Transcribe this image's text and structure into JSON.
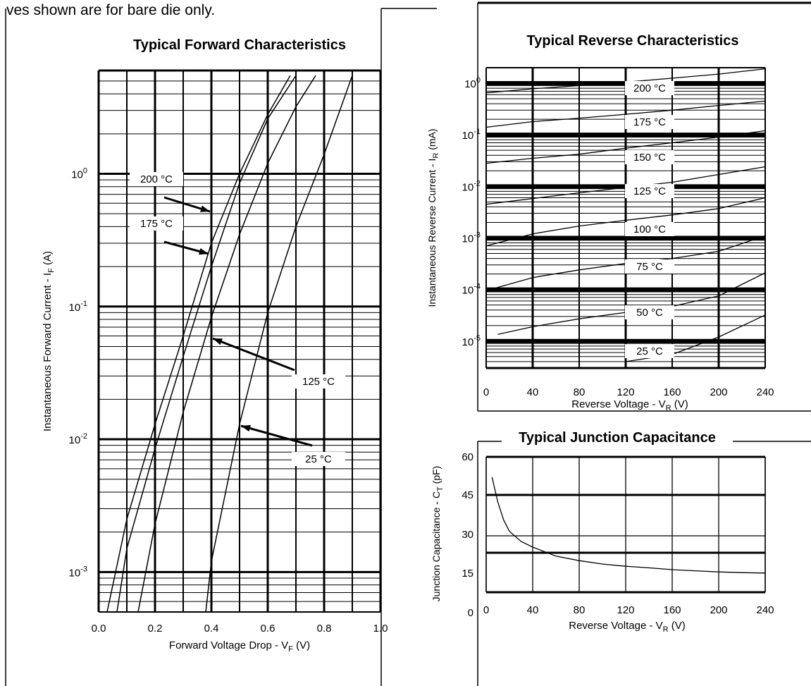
{
  "caption": "ves shown are for bare die only.",
  "chart_data": [
    {
      "type": "line",
      "title": "Typical Forward Characteristics",
      "xlabel": "Forward Voltage Drop - V",
      "xlabel_sub": "F",
      "xlabel_unit": " (V)",
      "ylabel": "Instantaneous Forward Current - I",
      "ylabel_sub": "F",
      "ylabel_unit": " (A)",
      "xlim": [
        0.0,
        1.0
      ],
      "ylim": [
        0.0005,
        6
      ],
      "yscale": "log",
      "grid": true,
      "xticks": [
        "0.0",
        "0.2",
        "0.4",
        "0.6",
        "0.8",
        "1.0"
      ],
      "yticks": [
        {
          "base": "10",
          "exp": "0",
          "value": 1
        },
        {
          "base": "10",
          "exp": "-1",
          "value": 0.1
        },
        {
          "base": "10",
          "exp": "-2",
          "value": 0.01
        },
        {
          "base": "10",
          "exp": "-3",
          "value": 0.001
        }
      ],
      "series": [
        {
          "name": "200 °C",
          "x": [
            0.03,
            0.1,
            0.2,
            0.3,
            0.4,
            0.5,
            0.6,
            0.68
          ],
          "y": [
            0.0005,
            0.0025,
            0.013,
            0.06,
            0.3,
            1.0,
            2.8,
            5.5
          ]
        },
        {
          "name": "175 °C",
          "x": [
            0.065,
            0.1,
            0.2,
            0.3,
            0.4,
            0.5,
            0.6,
            0.7
          ],
          "y": [
            0.0005,
            0.0015,
            0.0085,
            0.042,
            0.2,
            0.85,
            2.6,
            5.5
          ]
        },
        {
          "name": "125 °C",
          "x": [
            0.14,
            0.2,
            0.3,
            0.4,
            0.5,
            0.6,
            0.7,
            0.77
          ],
          "y": [
            0.0005,
            0.0023,
            0.016,
            0.083,
            0.35,
            1.2,
            3.2,
            5.5
          ]
        },
        {
          "name": "25 °C",
          "x": [
            0.38,
            0.4,
            0.5,
            0.6,
            0.7,
            0.8,
            0.9
          ],
          "y": [
            0.0005,
            0.0012,
            0.013,
            0.09,
            0.4,
            1.4,
            5.5
          ]
        }
      ],
      "annotations": [
        "200 °C",
        "175 °C",
        "125 °C",
        "25 °C"
      ]
    },
    {
      "type": "line",
      "title": "Typical Reverse Characteristics",
      "xlabel": "Reverse Voltage - V",
      "xlabel_sub": "R",
      "xlabel_unit": " (V)",
      "ylabel": "Instantaneous Reverse Current - I",
      "ylabel_sub": "R",
      "ylabel_unit": " (mA)",
      "xlim": [
        0,
        240
      ],
      "ylim": [
        3e-06,
        2
      ],
      "yscale": "log",
      "grid": true,
      "xticks": [
        "0",
        "40",
        "80",
        "120",
        "160",
        "200",
        "240"
      ],
      "yticks": [
        {
          "base": "10",
          "exp": "0",
          "value": 1
        },
        {
          "base": "10",
          "exp": "-1",
          "value": 0.1
        },
        {
          "base": "10",
          "exp": "-2",
          "value": 0.01
        },
        {
          "base": "10",
          "exp": "-3",
          "value": 0.001
        },
        {
          "base": "10",
          "exp": "-4",
          "value": 0.0001
        },
        {
          "base": "10",
          "exp": "-5",
          "value": 1e-05
        }
      ],
      "series": [
        {
          "name": "200 °C",
          "x": [
            0,
            40,
            80,
            120,
            160,
            200,
            240
          ],
          "y": [
            0.65,
            0.78,
            0.9,
            1.05,
            1.25,
            1.5,
            1.9
          ]
        },
        {
          "name": "175 °C",
          "x": [
            0,
            40,
            80,
            120,
            160,
            200,
            240
          ],
          "y": [
            0.14,
            0.18,
            0.21,
            0.25,
            0.3,
            0.37,
            0.45
          ]
        },
        {
          "name": "150 °C",
          "x": [
            0,
            40,
            80,
            120,
            160,
            200,
            240
          ],
          "y": [
            0.028,
            0.035,
            0.042,
            0.055,
            0.07,
            0.09,
            0.12
          ]
        },
        {
          "name": "125 °C",
          "x": [
            0,
            40,
            80,
            120,
            160,
            200,
            240
          ],
          "y": [
            0.0045,
            0.0058,
            0.0075,
            0.0095,
            0.012,
            0.017,
            0.024
          ]
        },
        {
          "name": "100 °C",
          "x": [
            0,
            40,
            80,
            120,
            160,
            200,
            240
          ],
          "y": [
            0.0007,
            0.0012,
            0.0017,
            0.0022,
            0.0028,
            0.0037,
            0.006
          ]
        },
        {
          "name": "75 °C",
          "x": [
            0,
            40,
            80,
            120,
            160,
            200,
            240
          ],
          "y": [
            9.5e-05,
            0.00017,
            0.00024,
            0.00032,
            0.0004,
            0.00055,
            0.0011
          ]
        },
        {
          "name": "50 °C",
          "x": [
            10,
            40,
            80,
            120,
            160,
            200,
            240
          ],
          "y": [
            1.35e-05,
            1.9e-05,
            2.7e-05,
            3.6e-05,
            4.7e-05,
            7.5e-05,
            0.00021
          ]
        },
        {
          "name": "25 °C",
          "x": [
            120,
            160,
            200,
            240
          ],
          "y": [
            4e-06,
            5.5e-06,
            1.2e-05,
            3.2e-05
          ]
        }
      ],
      "annotations": [
        "200 °C",
        "175 °C",
        "150 °C",
        "125 °C",
        "100 °C",
        "75 °C",
        "50 °C",
        "25 °C"
      ]
    },
    {
      "type": "line",
      "title": "Typical Junction Capacitance",
      "xlabel": "Reverse Voltage - V",
      "xlabel_sub": "R",
      "xlabel_unit": " (V)",
      "ylabel": "Junction Capacitance - C",
      "ylabel_sub": "T",
      "ylabel_unit": " (pF)",
      "xlim": [
        0,
        240
      ],
      "ylim": [
        0,
        60
      ],
      "grid": true,
      "xticks": [
        "0",
        "40",
        "80",
        "120",
        "160",
        "200",
        "240"
      ],
      "yticks": [
        "0",
        "15",
        "30",
        "45",
        "60"
      ],
      "series": [
        {
          "name": "",
          "x": [
            5,
            10,
            15,
            20,
            30,
            40,
            60,
            80,
            100,
            120,
            140,
            160,
            180,
            200,
            220,
            240
          ],
          "y": [
            51,
            40,
            32,
            27,
            22.5,
            20,
            16,
            14,
            12.5,
            11.5,
            10.8,
            10,
            9.5,
            9,
            8.7,
            8.5
          ]
        }
      ]
    }
  ]
}
